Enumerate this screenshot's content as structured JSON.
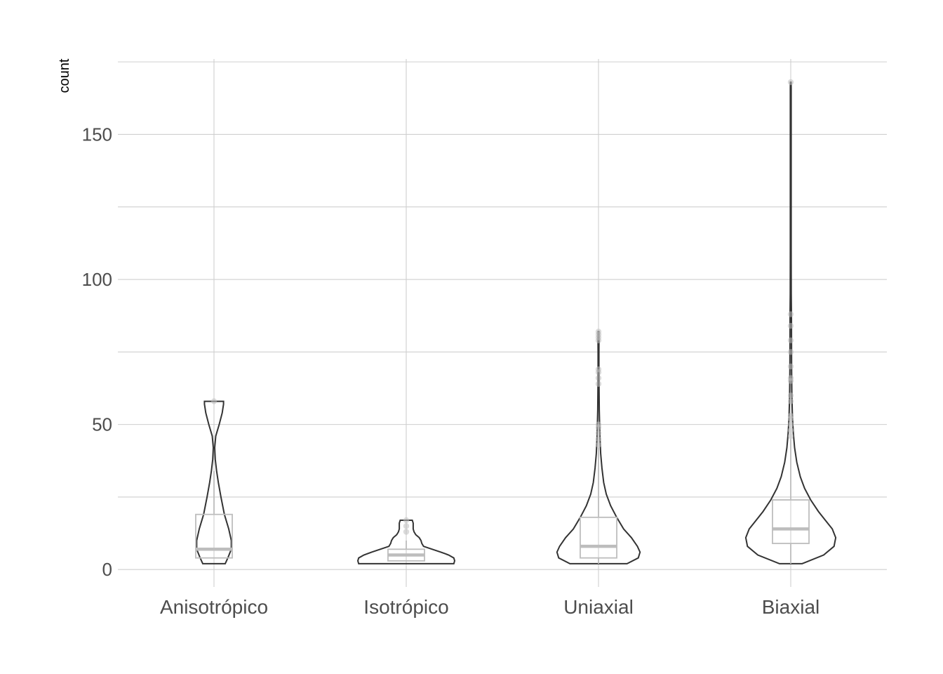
{
  "chart_data": {
    "type": "violin",
    "title": "",
    "xlabel": "",
    "ylabel": "count",
    "ylim": [
      -6,
      176
    ],
    "y_ticks": [
      0,
      50,
      100,
      150
    ],
    "grid": true,
    "categories": [
      "Anisotrópico",
      "Isotrópico",
      "Uniaxial",
      "Biaxial"
    ],
    "groups": [
      {
        "name": "Anisotrópico",
        "min": 2,
        "max": 58,
        "box": {
          "lower_whisker": 4,
          "q1": 4,
          "median": 7,
          "q3": 19,
          "upper_whisker": 34
        },
        "outliers": [
          58
        ],
        "density": [
          [
            2,
            0.13
          ],
          [
            4,
            0.16
          ],
          [
            7,
            0.2
          ],
          [
            10,
            0.2
          ],
          [
            14,
            0.17
          ],
          [
            19,
            0.12
          ],
          [
            25,
            0.08
          ],
          [
            30,
            0.05
          ],
          [
            34,
            0.03
          ],
          [
            38,
            0.015
          ],
          [
            42,
            0.008
          ],
          [
            46,
            0.02
          ],
          [
            50,
            0.06
          ],
          [
            54,
            0.095
          ],
          [
            57,
            0.11
          ],
          [
            58,
            0.11
          ]
        ]
      },
      {
        "name": "Isotrópico",
        "min": 2,
        "max": 17,
        "box": {
          "lower_whisker": 3,
          "q1": 3,
          "median": 5,
          "q3": 7,
          "upper_whisker": 10
        },
        "outliers": [
          13,
          15,
          17
        ],
        "density": [
          [
            2,
            0.55
          ],
          [
            3,
            0.56
          ],
          [
            4,
            0.55
          ],
          [
            5,
            0.49
          ],
          [
            6,
            0.4
          ],
          [
            7,
            0.3
          ],
          [
            8,
            0.2
          ],
          [
            9,
            0.18
          ],
          [
            10,
            0.17
          ],
          [
            11,
            0.15
          ],
          [
            12,
            0.11
          ],
          [
            13,
            0.09
          ],
          [
            14,
            0.08
          ],
          [
            15,
            0.08
          ],
          [
            16,
            0.08
          ],
          [
            17,
            0.07
          ]
        ]
      },
      {
        "name": "Uniaxial",
        "min": 2,
        "max": 82,
        "box": {
          "lower_whisker": 2,
          "q1": 4,
          "median": 8,
          "q3": 18,
          "upper_whisker": 42
        },
        "outliers": [
          43,
          45,
          47,
          49,
          50,
          64,
          66,
          68,
          69,
          79,
          80,
          81,
          82
        ],
        "density": [
          [
            2,
            0.33
          ],
          [
            4,
            0.46
          ],
          [
            6,
            0.48
          ],
          [
            8,
            0.45
          ],
          [
            11,
            0.38
          ],
          [
            14,
            0.29
          ],
          [
            18,
            0.21
          ],
          [
            22,
            0.14
          ],
          [
            26,
            0.09
          ],
          [
            30,
            0.06
          ],
          [
            35,
            0.04
          ],
          [
            40,
            0.025
          ],
          [
            45,
            0.018
          ],
          [
            50,
            0.013
          ],
          [
            55,
            0.009
          ],
          [
            60,
            0.007
          ],
          [
            65,
            0.006
          ],
          [
            70,
            0.005
          ],
          [
            75,
            0.005
          ],
          [
            79,
            0.006
          ],
          [
            82,
            0.005
          ]
        ]
      },
      {
        "name": "Biaxial",
        "min": 2,
        "max": 168,
        "box": {
          "lower_whisker": 2,
          "q1": 9,
          "median": 14,
          "q3": 24,
          "upper_whisker": 45
        },
        "outliers": [
          46,
          48,
          50,
          52,
          53,
          58,
          60,
          65,
          66,
          70,
          75,
          79,
          84,
          88,
          168
        ],
        "density": [
          [
            2,
            0.13
          ],
          [
            5,
            0.38
          ],
          [
            8,
            0.5
          ],
          [
            11,
            0.52
          ],
          [
            14,
            0.48
          ],
          [
            17,
            0.4
          ],
          [
            20,
            0.32
          ],
          [
            24,
            0.23
          ],
          [
            28,
            0.16
          ],
          [
            32,
            0.11
          ],
          [
            37,
            0.07
          ],
          [
            42,
            0.045
          ],
          [
            47,
            0.03
          ],
          [
            52,
            0.02
          ],
          [
            60,
            0.013
          ],
          [
            70,
            0.01
          ],
          [
            80,
            0.009
          ],
          [
            88,
            0.008
          ],
          [
            95,
            0.006
          ],
          [
            110,
            0.005
          ],
          [
            130,
            0.005
          ],
          [
            150,
            0.005
          ],
          [
            166,
            0.005
          ],
          [
            168,
            0.004
          ]
        ]
      }
    ]
  }
}
